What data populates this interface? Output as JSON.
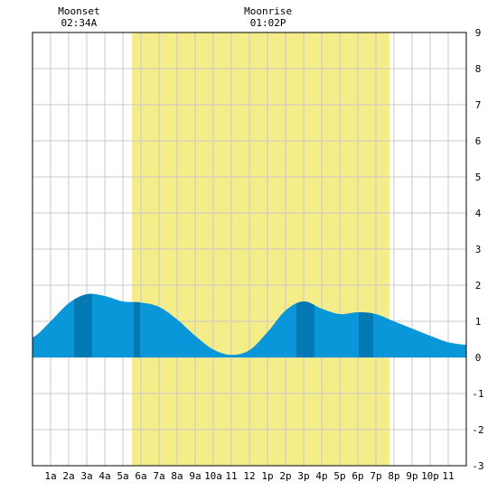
{
  "chart_data": {
    "type": "area",
    "title": "",
    "xlabel": "",
    "ylabel": "",
    "x_range_hours": [
      0,
      24
    ],
    "ylim": [
      -3,
      9
    ],
    "y_ticks": [
      -3,
      -2,
      -1,
      0,
      1,
      2,
      3,
      4,
      5,
      6,
      7,
      8,
      9
    ],
    "x_tick_labels": [
      {
        "hour": 1,
        "label": "1a"
      },
      {
        "hour": 2,
        "label": "2a"
      },
      {
        "hour": 3,
        "label": "3a"
      },
      {
        "hour": 4,
        "label": "4a"
      },
      {
        "hour": 5,
        "label": "5a"
      },
      {
        "hour": 6,
        "label": "6a"
      },
      {
        "hour": 7,
        "label": "7a"
      },
      {
        "hour": 8,
        "label": "8a"
      },
      {
        "hour": 9,
        "label": "9a"
      },
      {
        "hour": 10,
        "label": "10a"
      },
      {
        "hour": 11,
        "label": "11"
      },
      {
        "hour": 12,
        "label": "12"
      },
      {
        "hour": 13,
        "label": "1p"
      },
      {
        "hour": 14,
        "label": "2p"
      },
      {
        "hour": 15,
        "label": "3p"
      },
      {
        "hour": 16,
        "label": "4p"
      },
      {
        "hour": 17,
        "label": "5p"
      },
      {
        "hour": 18,
        "label": "6p"
      },
      {
        "hour": 19,
        "label": "7p"
      },
      {
        "hour": 20,
        "label": "8p"
      },
      {
        "hour": 21,
        "label": "9p"
      },
      {
        "hour": 22,
        "label": "10p"
      },
      {
        "hour": 23,
        "label": "11"
      }
    ],
    "grid": true,
    "daylight": {
      "start_hour": 5.5,
      "end_hour": 19.75
    },
    "moon_events": [
      {
        "label": "Moonset",
        "time": "02:34A",
        "hour": 2.57
      },
      {
        "label": "Moonrise",
        "time": "01:02P",
        "hour": 13.03
      }
    ],
    "tide_curve": {
      "x": [
        0,
        1,
        2,
        3,
        4,
        5,
        6,
        7,
        8,
        9,
        10,
        11,
        12,
        13,
        14,
        15,
        16,
        17,
        18,
        19,
        20,
        21,
        22,
        23,
        24
      ],
      "y": [
        0.55,
        1.0,
        1.5,
        1.75,
        1.7,
        1.55,
        1.52,
        1.4,
        1.05,
        0.6,
        0.22,
        0.07,
        0.2,
        0.7,
        1.3,
        1.55,
        1.35,
        1.2,
        1.25,
        1.2,
        1.0,
        0.8,
        0.6,
        0.42,
        0.35
      ]
    },
    "dark_bands": [
      {
        "start_hour": 2.3,
        "end_hour": 3.3
      },
      {
        "start_hour": 5.6,
        "end_hour": 5.95
      },
      {
        "start_hour": 14.6,
        "end_hour": 15.6
      },
      {
        "start_hour": 18.05,
        "end_hour": 18.85
      }
    ],
    "colors": {
      "background": "#ffffff",
      "grid": "#c8c8c8",
      "daylight": "#f5ec8a",
      "tide_fill": "#0a97d9",
      "tide_dark": "#0279b3",
      "axis": "#000000"
    }
  }
}
